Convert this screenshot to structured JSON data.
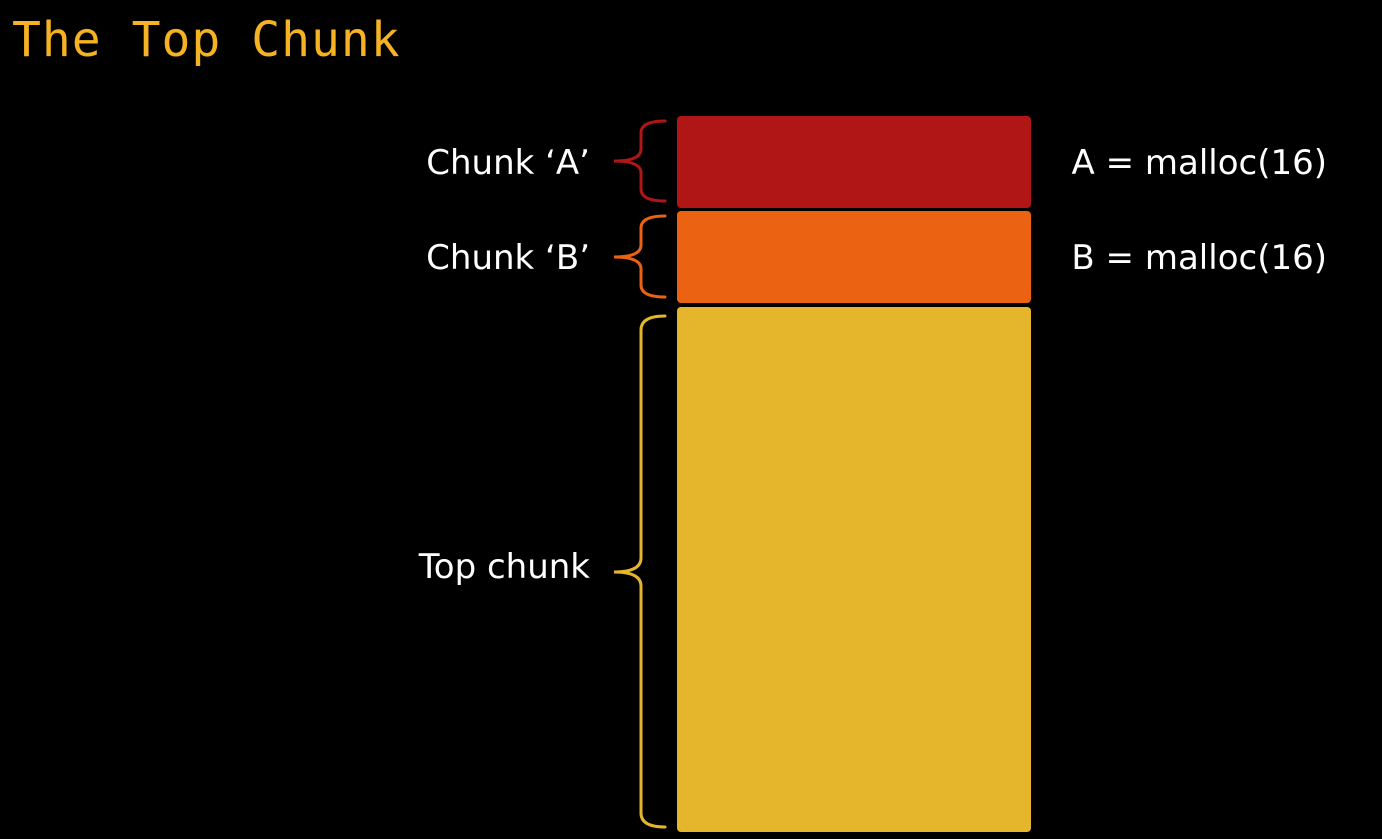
{
  "title": "The Top Chunk",
  "colors": {
    "background": "#000000",
    "title": "#f5b222",
    "chunk_a": "#b01616",
    "chunk_b": "#ec6213",
    "top_chunk": "#e5b62b",
    "text": "#ffffff"
  },
  "chunks": [
    {
      "label": "Chunk ‘A’",
      "code": "A = malloc(16)",
      "color": "#b01616"
    },
    {
      "label": "Chunk ‘B’",
      "code": "B = malloc(16)",
      "color": "#ec6213"
    },
    {
      "label": "Top chunk",
      "code": "",
      "color": "#e5b62b"
    }
  ]
}
